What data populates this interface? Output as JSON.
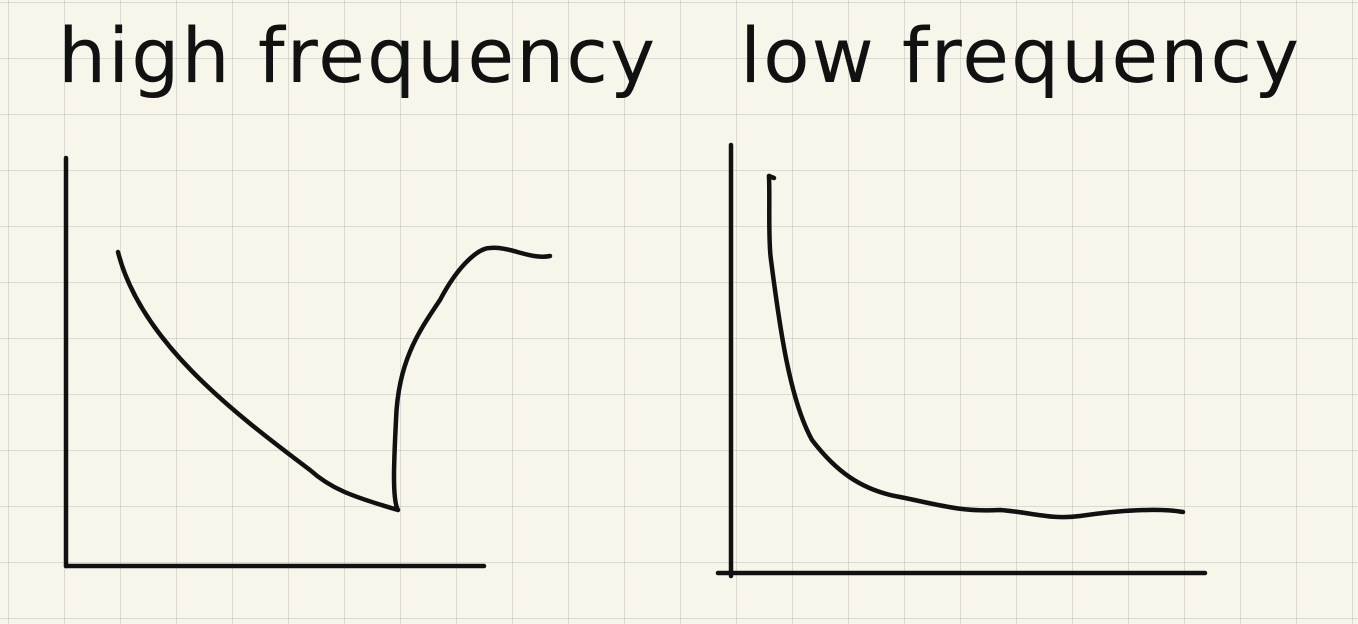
{
  "titles": {
    "left": "high frequency",
    "right": "low frequency"
  },
  "colors": {
    "ink": "#111111",
    "paper": "#f8f6ea",
    "grid": "#bec4be"
  }
}
